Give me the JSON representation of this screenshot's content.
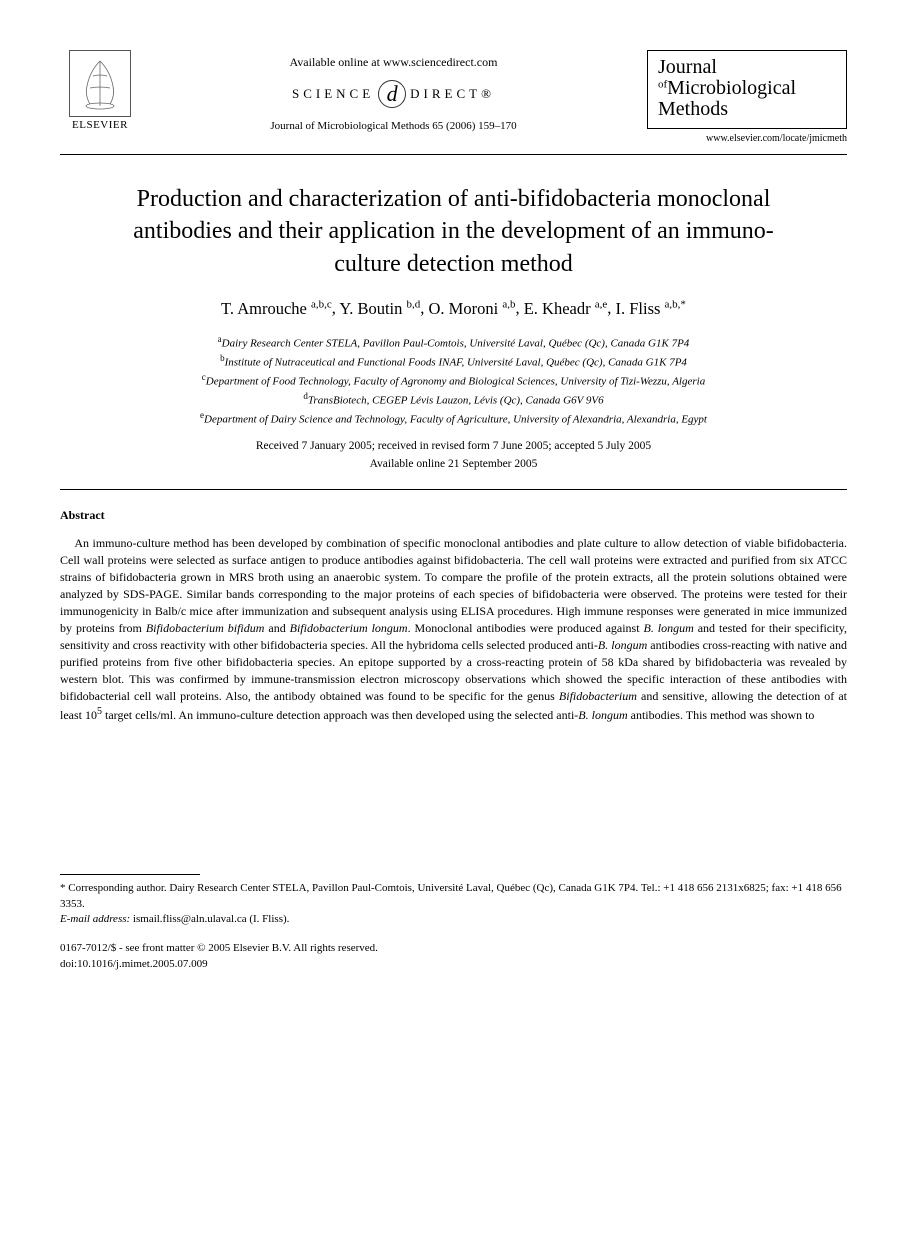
{
  "header": {
    "elsevier_label": "ELSEVIER",
    "available_online": "Available online at www.sciencedirect.com",
    "science_direct_left": "SCIENCE",
    "science_direct_right": "DIRECT®",
    "journal_reference": "Journal of Microbiological Methods 65 (2006) 159–170",
    "journal_logo": {
      "line1": "Journal",
      "of": "of",
      "line2": "Microbiological",
      "line3": "Methods"
    },
    "journal_url": "www.elsevier.com/locate/jmicmeth"
  },
  "title": "Production and characterization of anti-bifidobacteria monoclonal antibodies and their application in the development of an immuno-culture detection method",
  "authors": [
    {
      "name": "T. Amrouche",
      "sup": "a,b,c"
    },
    {
      "name": "Y. Boutin",
      "sup": "b,d"
    },
    {
      "name": "O. Moroni",
      "sup": "a,b"
    },
    {
      "name": "E. Kheadr",
      "sup": "a,e"
    },
    {
      "name": "I. Fliss",
      "sup": "a,b,*"
    }
  ],
  "affiliations": [
    {
      "sup": "a",
      "text": "Dairy Research Center STELA, Pavillon Paul-Comtois, Université Laval, Québec (Qc), Canada G1K 7P4"
    },
    {
      "sup": "b",
      "text": "Institute of Nutraceutical and Functional Foods INAF, Université Laval, Québec (Qc), Canada G1K 7P4"
    },
    {
      "sup": "c",
      "text": "Department of Food Technology, Faculty of Agronomy and Biological Sciences, University of Tizi-Wezzu, Algeria"
    },
    {
      "sup": "d",
      "text": "TransBiotech, CEGEP Lévis Lauzon, Lévis (Qc), Canada G6V 9V6"
    },
    {
      "sup": "e",
      "text": "Department of Dairy Science and Technology, Faculty of Agriculture, University of Alexandria, Alexandria, Egypt"
    }
  ],
  "dates": {
    "received": "Received 7 January 2005; received in revised form 7 June 2005; accepted 5 July 2005",
    "online": "Available online 21 September 2005"
  },
  "abstract": {
    "heading": "Abstract",
    "body_html": "An immuno-culture method has been developed by combination of specific monoclonal antibodies and plate culture to allow detection of viable bifidobacteria. Cell wall proteins were selected as surface antigen to produce antibodies against bifidobacteria. The cell wall proteins were extracted and purified from six ATCC strains of bifidobacteria grown in MRS broth using an anaerobic system. To compare the profile of the protein extracts, all the protein solutions obtained were analyzed by SDS-PAGE. Similar bands corresponding to the major proteins of each species of bifidobacteria were observed. The proteins were tested for their immunogenicity in Balb/c mice after immunization and subsequent analysis using ELISA procedures. High immune responses were generated in mice immunized by proteins from <i>Bifidobacterium bifidum</i> and <i>Bifidobacterium longum</i>. Monoclonal antibodies were produced against <i>B. longum</i> and tested for their specificity, sensitivity and cross reactivity with other bifidobacteria species. All the hybridoma cells selected produced anti-<i>B. longum</i> antibodies cross-reacting with native and purified proteins from five other bifidobacteria species. An epitope supported by a cross-reacting protein of 58 kDa shared by bifidobacteria was revealed by western blot. This was confirmed by immune-transmission electron microscopy observations which showed the specific interaction of these antibodies with bifidobacterial cell wall proteins. Also, the antibody obtained was found to be specific for the genus <i>Bifidobacterium</i> and sensitive, allowing the detection of at least 10<sup>5</sup> target cells/ml. An immuno-culture detection approach was then developed using the selected anti-<i>B. longum</i> antibodies. This method was shown to"
  },
  "footnotes": {
    "corresponding": "* Corresponding author. Dairy Research Center STELA, Pavillon Paul-Comtois, Université Laval, Québec (Qc), Canada G1K 7P4. Tel.: +1 418 656 2131x6825; fax: +1 418 656 3353.",
    "email_label": "E-mail address:",
    "email": "ismail.fliss@aln.ulaval.ca (I. Fliss)."
  },
  "copyright": {
    "line1": "0167-7012/$ - see front matter © 2005 Elsevier B.V. All rights reserved.",
    "line2": "doi:10.1016/j.mimet.2005.07.009"
  }
}
